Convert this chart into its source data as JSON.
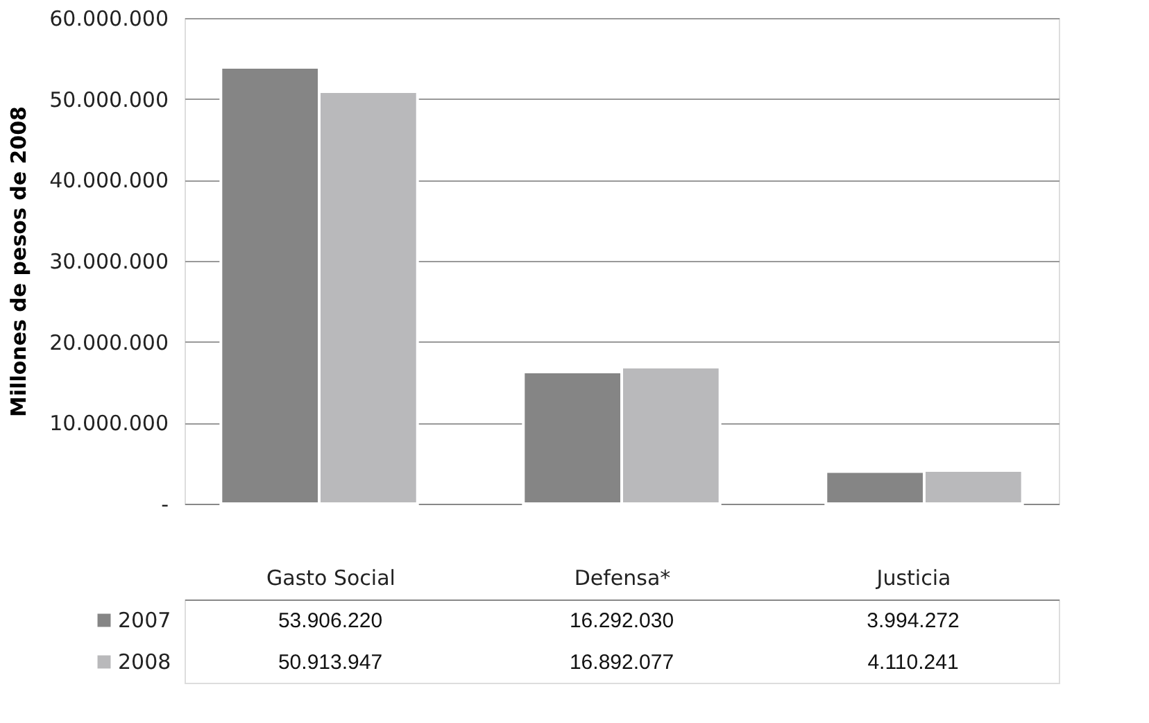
{
  "chart_data": {
    "type": "bar",
    "ylabel": "Millones de pesos de 2008",
    "categories": [
      "Gasto Social",
      "Defensa*",
      "Justicia"
    ],
    "series": [
      {
        "name": "2007",
        "color": "#858585",
        "values": [
          53906220,
          16292030,
          3994272
        ],
        "value_labels": [
          "53.906.220",
          "16.292.030",
          "3.994.272"
        ]
      },
      {
        "name": "2008",
        "color": "#b9b9bb",
        "values": [
          50913947,
          16892077,
          4110241
        ],
        "value_labels": [
          "50.913.947",
          "16.892.077",
          "4.110.241"
        ]
      }
    ],
    "ylim": [
      0,
      60000000
    ],
    "yticks": [
      {
        "value": 0,
        "label": "-"
      },
      {
        "value": 10000000,
        "label": "10.000.000"
      },
      {
        "value": 20000000,
        "label": "20.000.000"
      },
      {
        "value": 30000000,
        "label": "30.000.000"
      },
      {
        "value": 40000000,
        "label": "40.000.000"
      },
      {
        "value": 50000000,
        "label": "50.000.000"
      },
      {
        "value": 60000000,
        "label": "60.000.000"
      }
    ],
    "grid": "y",
    "legend": "bottom"
  }
}
